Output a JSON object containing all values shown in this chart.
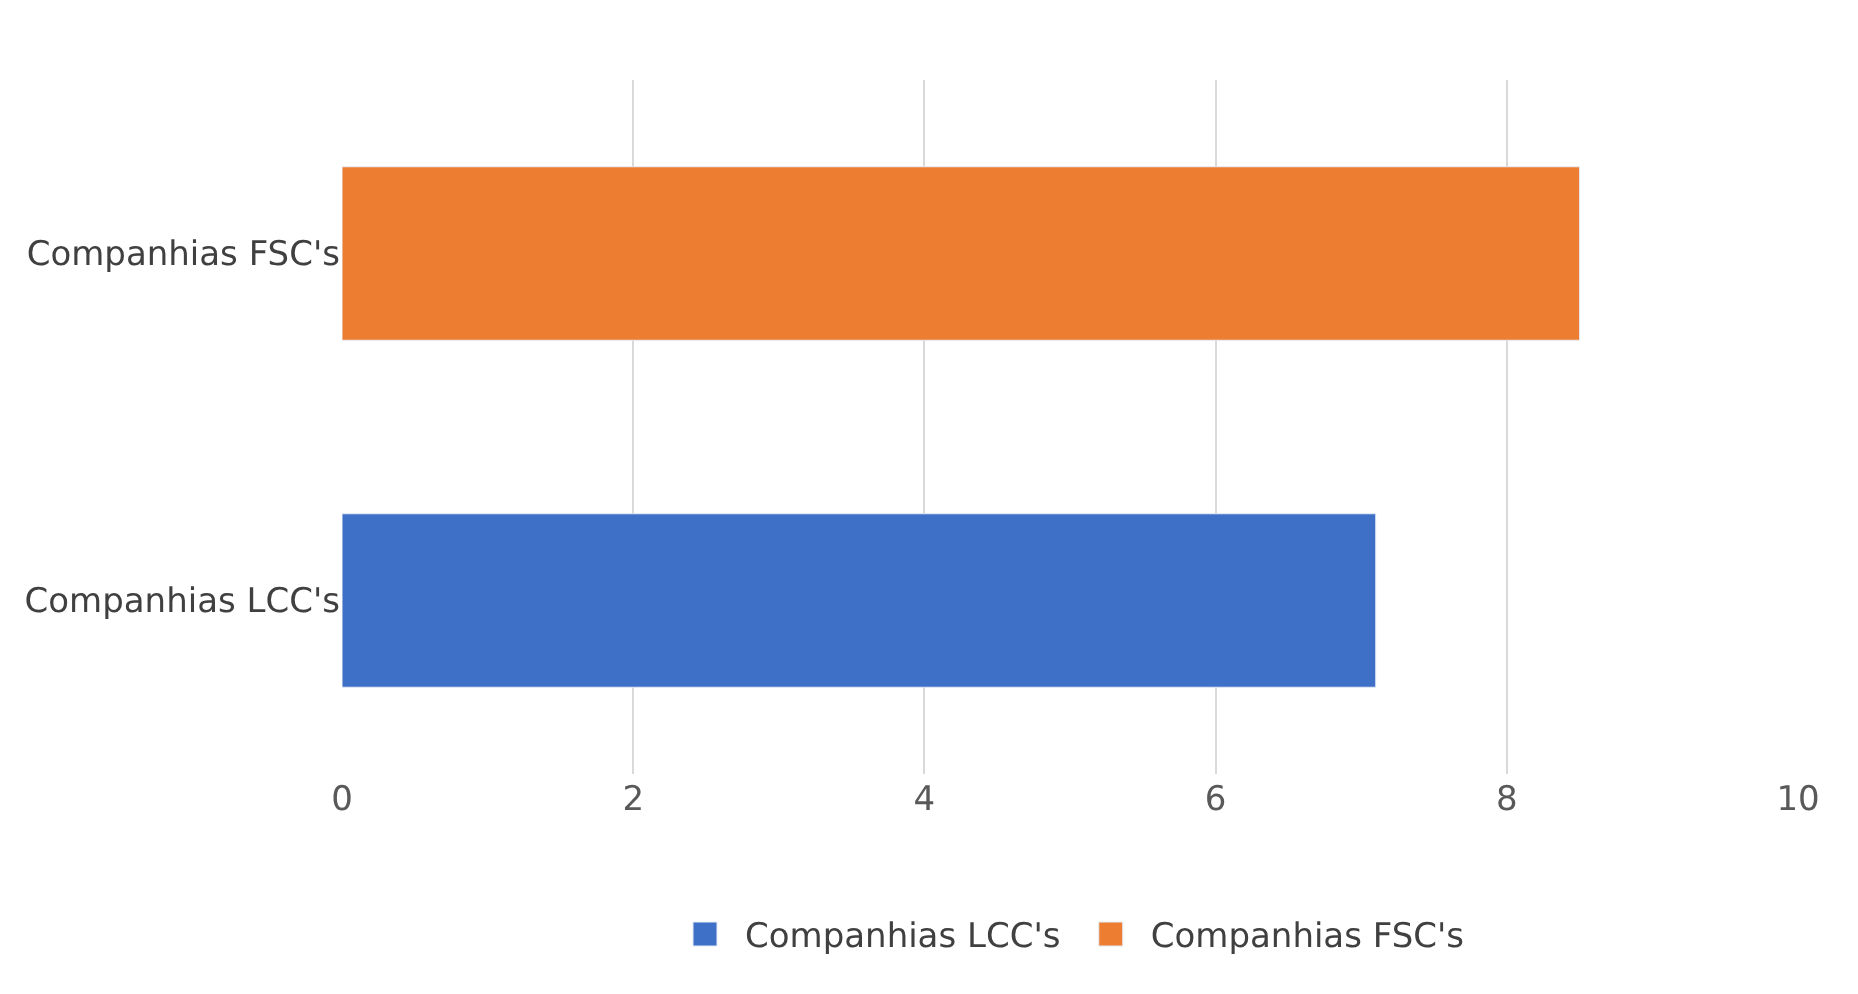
{
  "chart_data": {
    "type": "bar",
    "orientation": "horizontal",
    "categories": [
      "Companhias FSC's",
      "Companhias LCC's"
    ],
    "series": [
      {
        "name": "Companhias LCC's",
        "color": "#3f70c8",
        "values": [
          null,
          7.1
        ]
      },
      {
        "name": "Companhias FSC's",
        "color": "#ed7d31",
        "values": [
          8.5,
          null
        ]
      }
    ],
    "xlim": [
      0,
      10
    ],
    "xticks": [
      0,
      2,
      4,
      6,
      8,
      10
    ],
    "grid": "x",
    "legend": "bottom"
  }
}
